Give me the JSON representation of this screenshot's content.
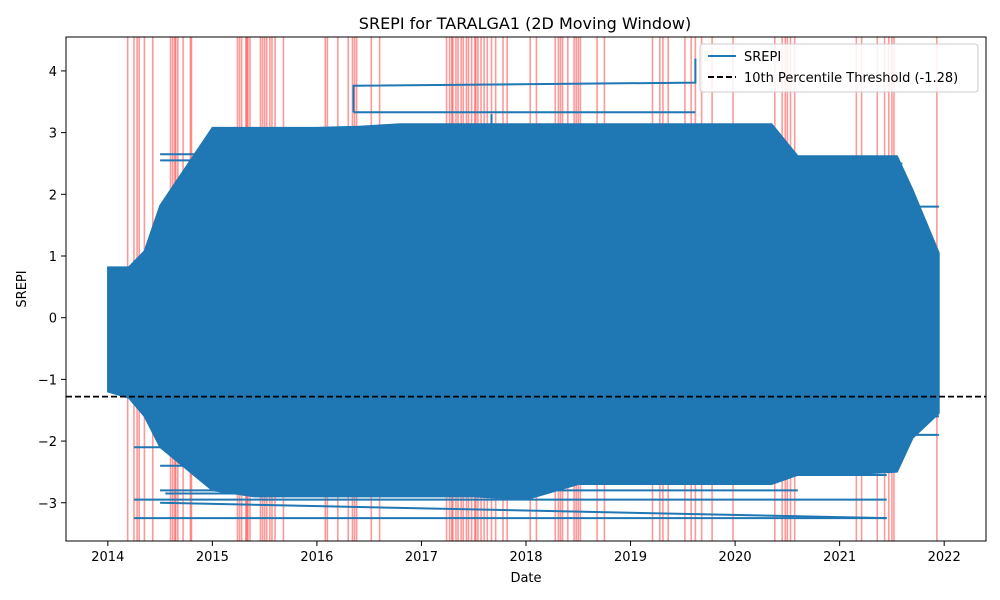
{
  "chart_data": {
    "type": "line",
    "title": "SREPI for TARALGA1 (2D Moving Window)",
    "xlabel": "Date",
    "ylabel": "SREPI",
    "x_range": [
      2013.6,
      2022.4
    ],
    "y_range": [
      -3.62,
      4.55
    ],
    "x_ticks": [
      {
        "value": 2014,
        "label": "2014"
      },
      {
        "value": 2015,
        "label": "2015"
      },
      {
        "value": 2016,
        "label": "2016"
      },
      {
        "value": 2017,
        "label": "2017"
      },
      {
        "value": 2018,
        "label": "2018"
      },
      {
        "value": 2019,
        "label": "2019"
      },
      {
        "value": 2020,
        "label": "2020"
      },
      {
        "value": 2021,
        "label": "2021"
      },
      {
        "value": 2022,
        "label": "2022"
      }
    ],
    "y_ticks": [
      {
        "value": -3,
        "label": "−3"
      },
      {
        "value": -2,
        "label": "−2"
      },
      {
        "value": -1,
        "label": "−1"
      },
      {
        "value": 0,
        "label": "0"
      },
      {
        "value": 1,
        "label": "1"
      },
      {
        "value": 2,
        "label": "2"
      },
      {
        "value": 3,
        "label": "3"
      },
      {
        "value": 4,
        "label": "4"
      }
    ],
    "grid": false,
    "legend_position": "top-right",
    "series": [
      {
        "name": "SREPI",
        "color": "#1f77b4",
        "band": {
          "x": [
            2014.0,
            2014.2,
            2014.35,
            2014.5,
            2015.0,
            2015.4,
            2016.0,
            2016.4,
            2016.8,
            2017.5,
            2018.0,
            2018.5,
            2019.0,
            2019.5,
            2020.0,
            2020.35,
            2020.6,
            2021.0,
            2021.55,
            2021.7,
            2021.95
          ],
          "y_low": [
            -1.2,
            -1.3,
            -1.6,
            -2.1,
            -2.8,
            -2.9,
            -2.9,
            -2.9,
            -2.9,
            -2.9,
            -2.95,
            -2.7,
            -2.7,
            -2.7,
            -2.7,
            -2.7,
            -2.55,
            -2.55,
            -2.5,
            -1.95,
            -1.55
          ],
          "y_high": [
            0.82,
            0.82,
            1.08,
            1.82,
            3.08,
            3.08,
            3.08,
            3.1,
            3.14,
            3.14,
            3.14,
            3.14,
            3.14,
            3.14,
            3.14,
            3.14,
            2.62,
            2.62,
            2.62,
            2.07,
            1.05
          ]
        },
        "lines": [
          {
            "x": [
              2016.35,
              2016.35,
              2019.62,
              2019.62,
              2019.62
            ],
            "y": [
              3.33,
              3.76,
              3.81,
              4.2,
              4.2
            ]
          },
          {
            "x": [
              2016.35,
              2019.62
            ],
            "y": [
              3.33,
              3.33
            ]
          },
          {
            "x": [
              2017.67,
              2017.67
            ],
            "y": [
              3.14,
              3.3
            ]
          },
          {
            "x": [
              2014.25,
              2021.45
            ],
            "y": [
              -3.25,
              -3.25
            ]
          },
          {
            "x": [
              2014.5,
              2021.45
            ],
            "y": [
              -3.0,
              -3.25
            ]
          },
          {
            "x": [
              2014.25,
              2021.45
            ],
            "y": [
              -2.95,
              -2.95
            ]
          },
          {
            "x": [
              2014.55,
              2015.35
            ],
            "y": [
              -2.85,
              -2.85
            ]
          },
          {
            "x": [
              2014.5,
              2020.6
            ],
            "y": [
              -2.8,
              -2.8
            ]
          },
          {
            "x": [
              2014.5,
              2015.35
            ],
            "y": [
              -2.4,
              -2.4
            ]
          },
          {
            "x": [
              2014.25,
              2014.55
            ],
            "y": [
              -2.1,
              -2.1
            ]
          },
          {
            "x": [
              2014.5,
              2015.35
            ],
            "y": [
              2.55,
              2.55
            ]
          },
          {
            "x": [
              2014.5,
              2015.35
            ],
            "y": [
              2.65,
              2.65
            ]
          },
          {
            "x": [
              2019.4,
              2020.35
            ],
            "y": [
              2.95,
              2.95
            ]
          },
          {
            "x": [
              2020.35,
              2021.6
            ],
            "y": [
              2.5,
              2.5
            ]
          },
          {
            "x": [
              2020.5,
              2021.45
            ],
            "y": [
              -2.55,
              -2.55
            ]
          },
          {
            "x": [
              2021.45,
              2021.95
            ],
            "y": [
              -1.9,
              -1.9
            ]
          },
          {
            "x": [
              2021.45,
              2021.95
            ],
            "y": [
              -1.6,
              -1.6
            ]
          },
          {
            "x": [
              2021.6,
              2021.95
            ],
            "y": [
              1.8,
              1.8
            ]
          }
        ]
      },
      {
        "name": "10th Percentile Threshold (-1.28)",
        "color": "#000000",
        "dashed": true,
        "y": -1.28
      }
    ],
    "drought_periods": {
      "color": "#ff0000",
      "x": [
        2014.19,
        2014.25,
        2014.28,
        2014.3,
        2014.35,
        2014.43,
        2014.6,
        2014.62,
        2014.64,
        2014.65,
        2014.67,
        2014.72,
        2014.79,
        2014.8,
        2015.24,
        2015.26,
        2015.28,
        2015.32,
        2015.33,
        2015.34,
        2015.36,
        2015.46,
        2015.48,
        2015.5,
        2015.52,
        2015.55,
        2015.57,
        2015.6,
        2015.68,
        2016.08,
        2016.1,
        2016.2,
        2016.3,
        2016.34,
        2016.36,
        2016.38,
        2016.52,
        2016.6,
        2017.24,
        2017.27,
        2017.29,
        2017.3,
        2017.33,
        2017.35,
        2017.38,
        2017.4,
        2017.43,
        2017.45,
        2017.48,
        2017.51,
        2017.52,
        2017.54,
        2017.57,
        2017.6,
        2017.63,
        2017.67,
        2017.71,
        2017.78,
        2017.82,
        2018.04,
        2018.1,
        2018.28,
        2018.31,
        2018.33,
        2018.35,
        2018.4,
        2018.46,
        2018.48,
        2018.5,
        2018.52,
        2018.68,
        2018.75,
        2019.21,
        2019.28,
        2019.31,
        2019.36,
        2019.52,
        2019.58,
        2019.62,
        2019.68,
        2019.78,
        2019.98,
        2020.38,
        2020.45,
        2020.48,
        2020.5,
        2020.53,
        2020.57,
        2021.16,
        2021.21,
        2021.36,
        2021.43,
        2021.47,
        2021.5,
        2021.52,
        2021.93
      ]
    }
  }
}
